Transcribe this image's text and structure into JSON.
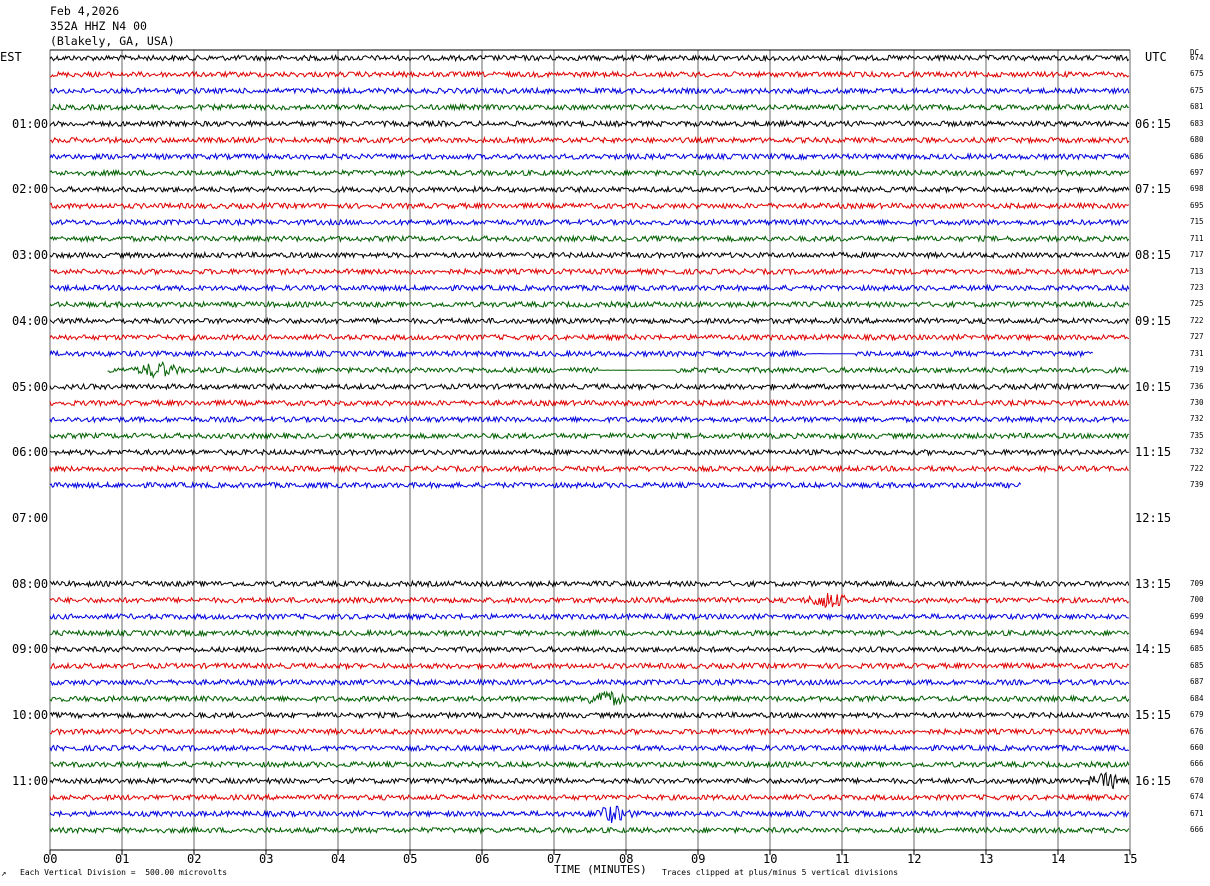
{
  "header": {
    "date": "Feb 4,2026",
    "station": "352A HHZ N4 00",
    "location": "(Blakely, GA, USA)"
  },
  "left_zone_label": "EST",
  "right_zone_label": "UTC",
  "dc_header": "DC",
  "footer": {
    "scale_note": "Each Vertical Division =  500.00 microvolts",
    "xlabel": "TIME (MINUTES)",
    "clip_note": "Traces clipped at plus/minus 5 vertical divisions",
    "corner_mark": "↗"
  },
  "colors": {
    "trace_cycle": [
      "#000000",
      "#e00000",
      "#0000e0",
      "#006000"
    ],
    "grid": "#666666"
  },
  "chart_data": {
    "type": "line",
    "title": "Feb 4,2026 352A HHZ N4 00 (Blakely, GA, USA)",
    "xlabel": "TIME (MINUTES)",
    "xlim": [
      0,
      15
    ],
    "x_ticks": [
      "00",
      "01",
      "02",
      "03",
      "04",
      "05",
      "06",
      "07",
      "08",
      "09",
      "10",
      "11",
      "12",
      "13",
      "14",
      "15"
    ],
    "est_labels": [
      "01:00",
      "02:00",
      "03:00",
      "04:00",
      "05:00",
      "06:00",
      "07:00",
      "08:00",
      "09:00",
      "10:00",
      "11:00"
    ],
    "utc_labels": [
      "06:15",
      "07:15",
      "08:15",
      "09:15",
      "10:15",
      "11:15",
      "12:15",
      "13:15",
      "14:15",
      "15:15",
      "16:15"
    ],
    "rows": [
      {
        "dc": "674",
        "start": 0,
        "end": 15
      },
      {
        "dc": "675",
        "start": 0,
        "end": 15
      },
      {
        "dc": "675",
        "start": 0,
        "end": 15
      },
      {
        "dc": "681",
        "start": 0,
        "end": 15
      },
      {
        "dc": "683",
        "start": 0,
        "end": 15
      },
      {
        "dc": "680",
        "start": 0,
        "end": 15
      },
      {
        "dc": "686",
        "start": 0,
        "end": 15
      },
      {
        "dc": "697",
        "start": 0,
        "end": 15
      },
      {
        "dc": "698",
        "start": 0,
        "end": 15
      },
      {
        "dc": "695",
        "start": 0,
        "end": 15
      },
      {
        "dc": "715",
        "start": 0,
        "end": 15
      },
      {
        "dc": "711",
        "start": 0,
        "end": 15
      },
      {
        "dc": "717",
        "start": 0,
        "end": 15
      },
      {
        "dc": "713",
        "start": 0,
        "end": 15
      },
      {
        "dc": "723",
        "start": 0,
        "end": 15
      },
      {
        "dc": "725",
        "start": 0,
        "end": 15
      },
      {
        "dc": "722",
        "start": 0,
        "end": 15
      },
      {
        "dc": "727",
        "start": 0,
        "end": 15
      },
      {
        "dc": "731",
        "start": 0,
        "end": 14.5,
        "flat": [
          10.5,
          11.2
        ]
      },
      {
        "dc": "719",
        "start": 0.8,
        "end": 15,
        "flat": [
          7.6,
          8.7
        ],
        "event": 1.5
      },
      {
        "dc": "736",
        "start": 0,
        "end": 15
      },
      {
        "dc": "730",
        "start": 0,
        "end": 15
      },
      {
        "dc": "732",
        "start": 0,
        "end": 15
      },
      {
        "dc": "735",
        "start": 0,
        "end": 15
      },
      {
        "dc": "732",
        "start": 0,
        "end": 15
      },
      {
        "dc": "722",
        "start": 0,
        "end": 15
      },
      {
        "dc": "739",
        "start": 0,
        "end": 13.5
      },
      {
        "dc": "",
        "start": null,
        "end": null
      },
      {
        "dc": "",
        "start": null,
        "end": null
      },
      {
        "dc": "",
        "start": null,
        "end": null
      },
      {
        "dc": "",
        "start": null,
        "end": null
      },
      {
        "dc": "",
        "start": null,
        "end": null
      },
      {
        "dc": "709",
        "start": 0,
        "end": 15
      },
      {
        "dc": "700",
        "start": 0,
        "end": 15,
        "event": 10.8
      },
      {
        "dc": "699",
        "start": 0,
        "end": 15
      },
      {
        "dc": "694",
        "start": 0,
        "end": 15
      },
      {
        "dc": "685",
        "start": 0,
        "end": 15
      },
      {
        "dc": "685",
        "start": 0,
        "end": 15
      },
      {
        "dc": "687",
        "start": 0,
        "end": 15
      },
      {
        "dc": "684",
        "start": 0,
        "end": 15,
        "event": 7.7
      },
      {
        "dc": "679",
        "start": 0,
        "end": 15
      },
      {
        "dc": "676",
        "start": 0,
        "end": 15
      },
      {
        "dc": "660",
        "start": 0,
        "end": 15
      },
      {
        "dc": "666",
        "start": 0,
        "end": 15
      },
      {
        "dc": "670",
        "start": 0,
        "end": 15,
        "event": 14.7
      },
      {
        "dc": "674",
        "start": 0,
        "end": 15
      },
      {
        "dc": "671",
        "start": 0,
        "end": 15,
        "event": 7.8
      },
      {
        "dc": "666",
        "start": 0,
        "end": 15
      }
    ]
  }
}
